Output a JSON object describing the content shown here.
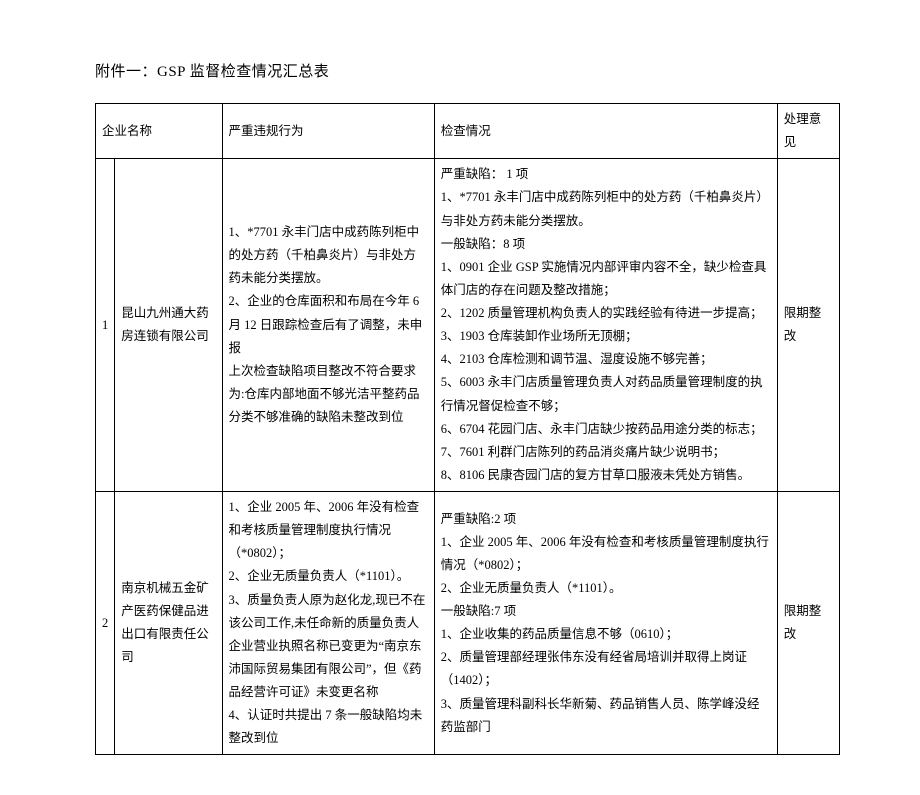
{
  "title": "附件一：GSP 监督检查情况汇总表",
  "columns": {
    "c1": "企业名称",
    "c2": "严重违规行为",
    "c3": "检查情况",
    "c4": "处理意见"
  },
  "rows": [
    {
      "idx": "1",
      "name": "昆山九州通大药房连锁有限公司",
      "violation": "1、*7701 永丰门店中成药陈列柜中的处方药（千柏鼻炎片）与非处方药未能分类摆放。\n2、企业的仓库面积和布局在今年 6 月 12 日跟踪检查后有了调整，未申报\n上次检查缺陷项目整改不符合要求为:仓库内部地面不够光洁平整药品分类不够准确的缺陷未整改到位",
      "inspection": "严重缺陷： 1 项\n1、*7701 永丰门店中成药陈列柜中的处方药（千柏鼻炎片）与非处方药未能分类摆放。\n一般缺陷：8 项\n1、0901 企业 GSP 实施情况内部评审内容不全，缺少检查具体门店的存在问题及整改措施；\n2、1202 质量管理机构负责人的实践经验有待进一步提高；\n3、1903 仓库装卸作业场所无顶棚；\n4、2103 仓库检测和调节温、湿度设施不够完善；\n5、6003 永丰门店质量管理负责人对药品质量管理制度的执行情况督促检查不够；\n6、6704 花园门店、永丰门店缺少按药品用途分类的标志；\n7、7601 利群门店陈列的药品消炎痛片缺少说明书；\n8、8106 民康杏园门店的复方甘草口服液未凭处方销售。",
      "opinion": "限期整改"
    },
    {
      "idx": "2",
      "name": "南京机械五金矿产医药保健品进出口有限责任公司",
      "violation": "1、企业 2005 年、2006 年没有检查和考核质量管理制度执行情况（*0802）；\n2、企业无质量负责人（*1101）。        3、质量负责人原为赵化龙,现已不在该公司工作,未任命新的质量负责人 企业营业执照名称已变更为“南京东沛国际贸易集团有限公司”，但《药品经营许可证》未变更名称\n4、认证时共提出 7 条一般缺陷均未整改到位",
      "inspection": "严重缺陷:2 项\n1、企业 2005 年、2006 年没有检查和考核质量管理制度执行情况（*0802）；\n2、企业无质量负责人（*1101）。\n一般缺陷:7 项\n1、企业收集的药品质量信息不够（0610）；\n2、质量管理部经理张伟东没有经省局培训并取得上岗证（1402）；\n3、质量管理科副科长华新菊、药品销售人员、陈学峰没经药监部门",
      "opinion": "限期整改"
    }
  ]
}
